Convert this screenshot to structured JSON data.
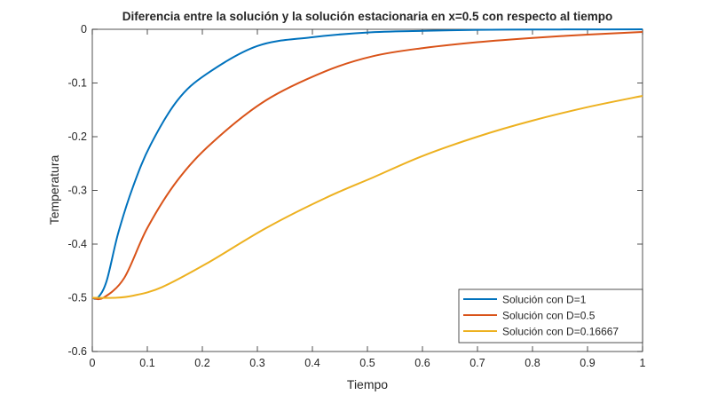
{
  "chart_data": {
    "type": "line",
    "title": "Diferencia entre la solución y la solución estacionaria en x=0.5 con respecto al tiempo",
    "xlabel": "Tiempo",
    "ylabel": "Temperatura",
    "xlim": [
      0,
      1
    ],
    "ylim": [
      -0.6,
      0
    ],
    "xticks": [
      "0",
      "0.1",
      "0.2",
      "0.3",
      "0.4",
      "0.5",
      "0.6",
      "0.7",
      "0.8",
      "0.9",
      "1"
    ],
    "yticks": [
      "0",
      "-0.1",
      "-0.2",
      "-0.3",
      "-0.4",
      "-0.5",
      "-0.6"
    ],
    "grid": false,
    "legend_position": "bottom-right",
    "series": [
      {
        "name": "Solución con D=1",
        "color": "#0072BD",
        "x": [
          0,
          0.01,
          0.026,
          0.047,
          0.074,
          0.106,
          0.155,
          0.208,
          0.3,
          0.397,
          0.5,
          0.6,
          0.7,
          0.8,
          0.9,
          1
        ],
        "y": [
          -0.5,
          -0.5,
          -0.469,
          -0.38,
          -0.293,
          -0.215,
          -0.132,
          -0.083,
          -0.031,
          -0.015,
          -0.006,
          -0.003,
          -0.001,
          -0.0005,
          -0.0002,
          0
        ]
      },
      {
        "name": "Solución con D=0.5",
        "color": "#D95319",
        "x": [
          0,
          0.02,
          0.058,
          0.1,
          0.155,
          0.219,
          0.316,
          0.424,
          0.51,
          0.6,
          0.7,
          0.8,
          0.9,
          1
        ],
        "y": [
          -0.5,
          -0.5,
          -0.463,
          -0.37,
          -0.281,
          -0.21,
          -0.132,
          -0.078,
          -0.05,
          -0.035,
          -0.024,
          -0.016,
          -0.01,
          -0.005
        ]
      },
      {
        "name": "Solución con D=0.16667",
        "color": "#EDB120",
        "x": [
          0,
          0.04,
          0.074,
          0.127,
          0.208,
          0.316,
          0.424,
          0.51,
          0.6,
          0.7,
          0.8,
          0.9,
          1
        ],
        "y": [
          -0.5,
          -0.5,
          -0.496,
          -0.48,
          -0.436,
          -0.37,
          -0.314,
          -0.276,
          -0.236,
          -0.2,
          -0.17,
          -0.145,
          -0.124
        ]
      }
    ]
  }
}
